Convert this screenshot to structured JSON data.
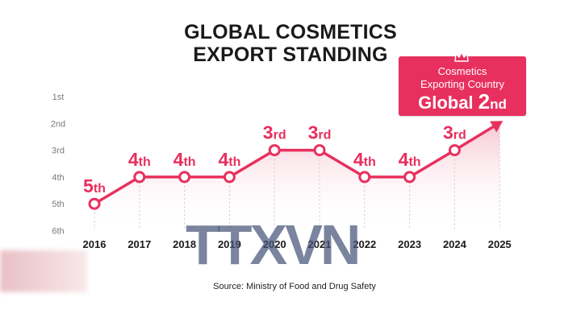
{
  "title": {
    "line1": "GLOBAL COSMETICS",
    "line2": "EXPORT STANDING"
  },
  "source": "Source: Ministry of Food and Drug Safety",
  "badge": {
    "line1": "Cosmetics",
    "line2": "Exporting Country",
    "line3_prefix": "Global ",
    "line3_number": "2",
    "line3_suffix": "nd",
    "icon": "crown-icon"
  },
  "watermark": "TTXVN",
  "colors": {
    "accent": "#e8305e",
    "title": "#1a1a1a",
    "tick": "#7a7a7a",
    "fill_top": "#f5b5c5"
  },
  "chart_data": {
    "type": "line",
    "title": "GLOBAL COSMETICS EXPORT STANDING",
    "xlabel": "",
    "ylabel": "",
    "x": [
      "2016",
      "2017",
      "2018",
      "2019",
      "2020",
      "2021",
      "2022",
      "2023",
      "2024",
      "2025"
    ],
    "y_ticks": [
      "1st",
      "2nd",
      "3rd",
      "4th",
      "5th",
      "6th"
    ],
    "ylim": [
      1,
      6
    ],
    "y_reversed": true,
    "grid": false,
    "series": [
      {
        "values": [
          5,
          4,
          4,
          4,
          3,
          3,
          4,
          4,
          3,
          2
        ],
        "point_labels": [
          {
            "num": "5",
            "suf": "th"
          },
          {
            "num": "4",
            "suf": "th"
          },
          {
            "num": "4",
            "suf": "th"
          },
          {
            "num": "4",
            "suf": "th"
          },
          {
            "num": "3",
            "suf": "rd"
          },
          {
            "num": "3",
            "suf": "rd"
          },
          {
            "num": "4",
            "suf": "th"
          },
          {
            "num": "4",
            "suf": "th"
          },
          {
            "num": "3",
            "suf": "rd"
          },
          null
        ],
        "last_point_style": "arrow"
      }
    ]
  }
}
